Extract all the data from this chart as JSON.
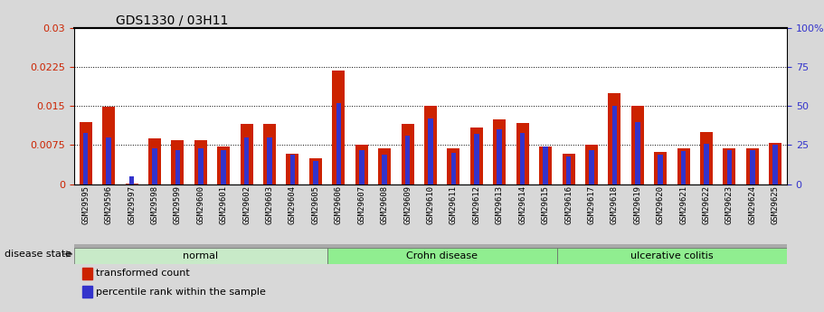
{
  "title": "GDS1330 / 03H11",
  "samples": [
    "GSM29595",
    "GSM29596",
    "GSM29597",
    "GSM29598",
    "GSM29599",
    "GSM29600",
    "GSM29601",
    "GSM29602",
    "GSM29603",
    "GSM29604",
    "GSM29605",
    "GSM29606",
    "GSM29607",
    "GSM29608",
    "GSM29609",
    "GSM29610",
    "GSM29611",
    "GSM29612",
    "GSM29613",
    "GSM29614",
    "GSM29615",
    "GSM29616",
    "GSM29617",
    "GSM29618",
    "GSM29619",
    "GSM29620",
    "GSM29621",
    "GSM29622",
    "GSM29623",
    "GSM29624",
    "GSM29625"
  ],
  "red_values": [
    0.012,
    0.0148,
    0.0001,
    0.0088,
    0.0085,
    0.0085,
    0.0072,
    0.0115,
    0.0115,
    0.0058,
    0.005,
    0.0218,
    0.0075,
    0.0068,
    0.0115,
    0.015,
    0.0068,
    0.0108,
    0.0125,
    0.0118,
    0.0072,
    0.0058,
    0.0075,
    0.0175,
    0.015,
    0.0062,
    0.0068,
    0.01,
    0.0068,
    0.0068,
    0.008
  ],
  "blue_percentile": [
    33,
    30,
    5,
    23,
    22,
    23,
    22,
    30,
    30,
    19,
    15,
    52,
    22,
    19,
    31,
    42,
    20,
    32,
    35,
    33,
    24,
    18,
    22,
    50,
    40,
    19,
    21,
    26,
    22,
    22,
    25
  ],
  "ylim_left": [
    0,
    0.03
  ],
  "ylim_right": [
    0,
    100
  ],
  "yticks_left": [
    0,
    0.0075,
    0.015,
    0.0225,
    0.03
  ],
  "ytick_labels_left": [
    "0",
    "0.0075",
    "0.015",
    "0.0225",
    "0.03"
  ],
  "yticks_right": [
    0,
    25,
    50,
    75,
    100
  ],
  "ytick_labels_right": [
    "0",
    "25",
    "50",
    "75",
    "100%"
  ],
  "grid_values": [
    0.0075,
    0.015,
    0.0225
  ],
  "red_color": "#cc2200",
  "blue_color": "#3333cc",
  "bg_color": "#d8d8d8",
  "plot_bg_color": "#ffffff",
  "legend_red": "transformed count",
  "legend_blue": "percentile rank within the sample",
  "disease_state_label": "disease state",
  "normal_color": "#c8eac8",
  "crohn_color": "#90ee90",
  "uc_color": "#90ee90",
  "separator_color": "#aaaaaa"
}
